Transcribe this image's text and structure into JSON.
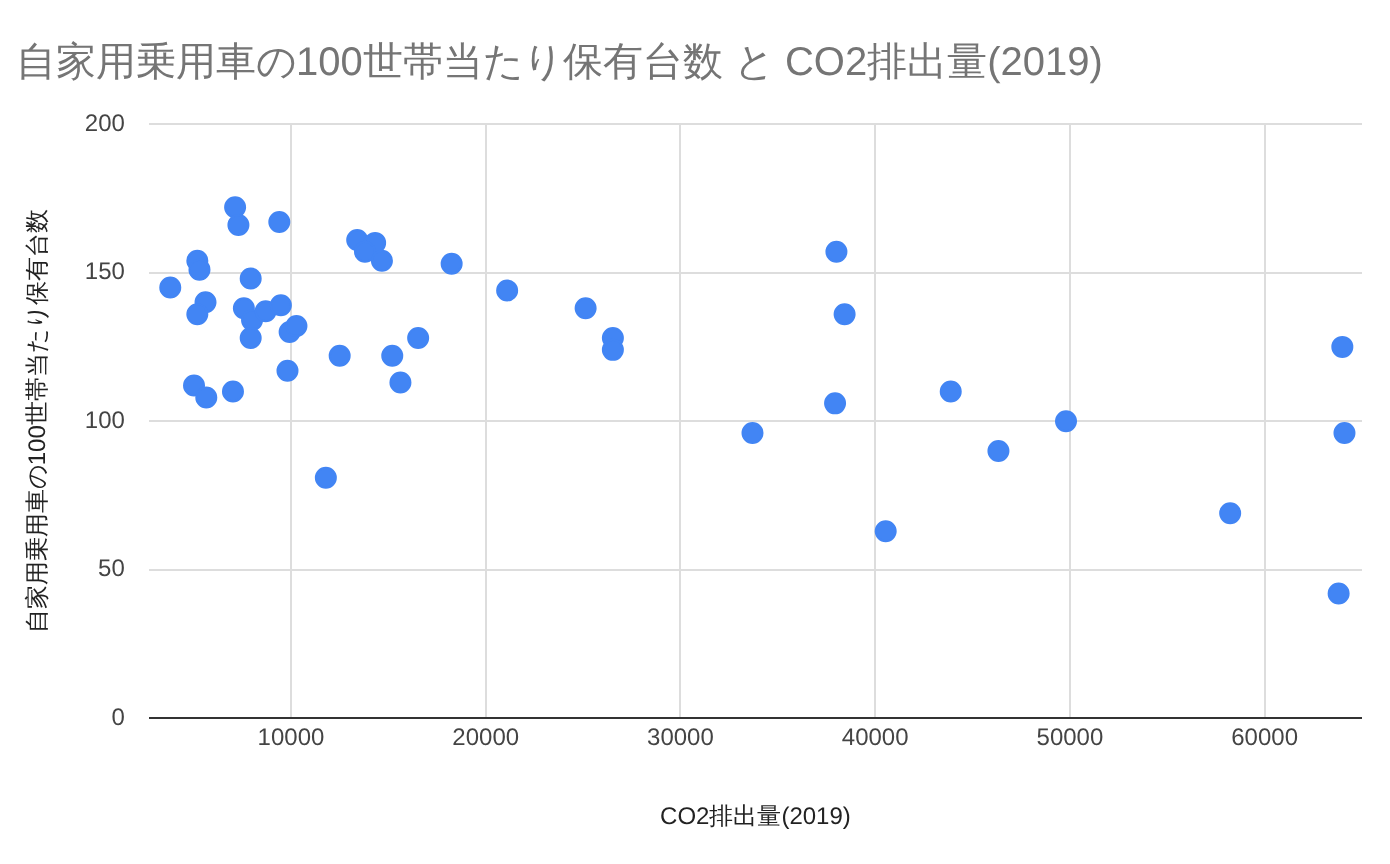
{
  "chart_data": {
    "type": "scatter",
    "title": "自家用乗用車の100世帯当たり保有台数 と CO2排出量(2019)",
    "xlabel": "CO2排出量(2019)",
    "ylabel": "自家用乗用車の100世帯当たり保有台数",
    "x": [
      3800,
      7130,
      7300,
      9400,
      13400,
      14320,
      13800,
      14670,
      18250,
      5190,
      5300,
      7930,
      21100,
      5610,
      5190,
      7580,
      8000,
      8700,
      9480,
      7930,
      9930,
      10280,
      12500,
      15200,
      16530,
      9820,
      15620,
      5020,
      5650,
      7020,
      11790,
      25130,
      26530,
      26530,
      38010,
      38430,
      37940,
      33700,
      40540,
      43880,
      46330,
      49800,
      58230,
      63990,
      64100,
      63800
    ],
    "values": [
      145,
      172,
      166,
      167,
      161,
      160,
      157,
      154,
      153,
      154,
      151,
      148,
      144,
      140,
      136,
      138,
      134,
      137,
      139,
      128,
      130,
      132,
      122,
      122,
      128,
      117,
      113,
      112,
      108,
      110,
      81,
      138,
      128,
      124,
      157,
      136,
      106,
      96,
      63,
      110,
      90,
      100,
      69,
      125,
      96,
      42
    ],
    "color": "#4285f4",
    "marker": "circle",
    "xlim": [
      2700,
      65000
    ],
    "xticks": [
      10000,
      20000,
      30000,
      40000,
      50000,
      60000
    ],
    "ylim": [
      0,
      200
    ],
    "yticks": [
      0,
      50,
      100,
      150,
      200
    ],
    "grid": true,
    "legend": false
  }
}
